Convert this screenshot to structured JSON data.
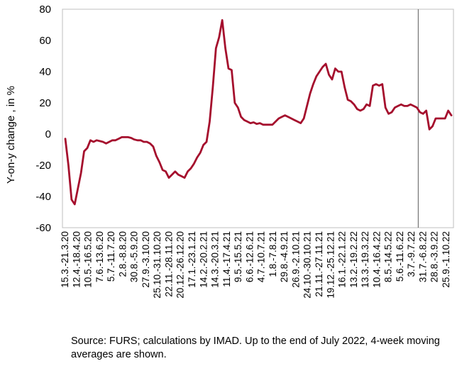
{
  "chart_data": {
    "type": "line",
    "ylabel": "Y-on-y change , in %",
    "ylim": [
      -60,
      80
    ],
    "yticks": [
      -60,
      -40,
      -20,
      0,
      20,
      40,
      60,
      80
    ],
    "grid": false,
    "legend": "none",
    "line_color": "#a50f2d",
    "vline_color": "#595959",
    "vline_after_tick": "3.7.-9.7.22",
    "x_tick_labels": [
      "15.3.-21.3.20",
      "12.4.-18.4.20",
      "10.5.-16.5.20",
      "7.6.-13.6.20",
      "5.7.-11.7.20",
      "2.8.-8.8.20",
      "30.8.-5.9.20",
      "27.9.-3.10.20",
      "25.10.-31.10.20",
      "22.11.-28.11.20",
      "20.12.-26.12.20",
      "17.1.-23.1.21",
      "14.2.-20.2.21",
      "14.3.-20.3.21",
      "11.4.-17.4.21",
      "9.5.-15.5.21",
      "6.6.-12.6.21",
      "4.7.-10.7.21",
      "1.8.-7.8.21",
      "29.8.-4.9.21",
      "26.9.-2.10.21",
      "24.10.-30.10.21",
      "21.11.-27.11.21",
      "19.12.-25.12.21",
      "16.1.-22.1.22",
      "13.2.-19.2.22",
      "13.3.-19.3.22",
      "10.4.-16.4.22",
      "8.5.-14.5.22",
      "5.6.-11.6.22",
      "3.7.-9.7.22",
      "31.7.-6.8.22",
      "28.8.-3.9.22",
      "25.9.-1.10.22"
    ],
    "series": [
      {
        "values": [
          -3,
          -20,
          -42,
          -45,
          -35,
          -25,
          -11,
          -9,
          -4,
          -5,
          -4,
          -4.5,
          -5,
          -6,
          -5,
          -4,
          -4,
          -3,
          -2,
          -2,
          -2,
          -2.5,
          -3.5,
          -4,
          -4,
          -5,
          -5,
          -6,
          -8,
          -14,
          -18,
          -23,
          -24,
          -28,
          -26,
          -24,
          -26,
          -27,
          -28,
          -24,
          -22,
          -19,
          -15,
          -12,
          -7,
          -5,
          8,
          30,
          55,
          62,
          73,
          55,
          42,
          41,
          20,
          17,
          11,
          9,
          8,
          7,
          7.5,
          6.5,
          7,
          6,
          6,
          6,
          6,
          8,
          10,
          11,
          12,
          11,
          10,
          9,
          8,
          7,
          10,
          18,
          26,
          32,
          37,
          40,
          43,
          45,
          38,
          35,
          42,
          40,
          40,
          30,
          22,
          21,
          19,
          16,
          15,
          16,
          19,
          18,
          31,
          32,
          31,
          32,
          17,
          13,
          14,
          17,
          18,
          19,
          18,
          18,
          19,
          18,
          17,
          14,
          13,
          15,
          3,
          5,
          10,
          10,
          10,
          10,
          15,
          12
        ]
      }
    ]
  },
  "source_text": "Source: FURS; calculations by IMAD. Up to the end of July 2022, 4-week moving averages are shown."
}
